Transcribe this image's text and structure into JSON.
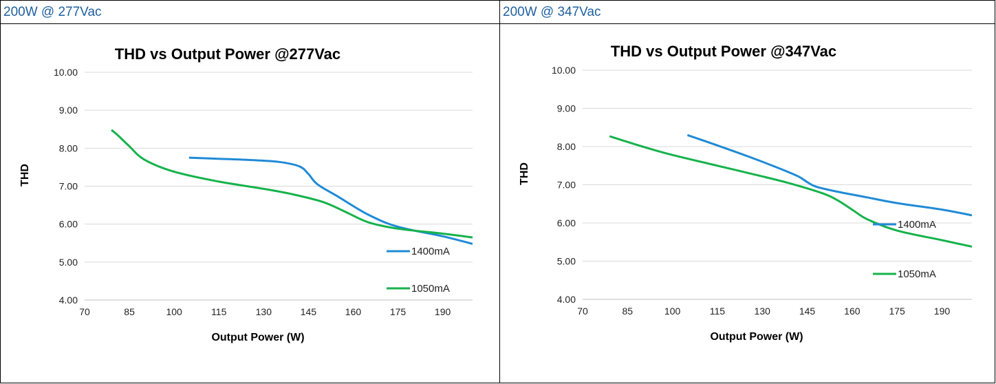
{
  "cells": [
    {
      "header": "200W @ 277Vac"
    },
    {
      "header": "200W @ 347Vac"
    }
  ],
  "colors": {
    "s1400": "#1f8ad6",
    "s1050": "#16b24b",
    "grid": "#d9d9d9",
    "header_text": "#1f5f9e"
  },
  "chart_data": [
    {
      "type": "line",
      "title": "THD vs Output Power @277Vac",
      "xlabel": "Output Power (W)",
      "ylabel": "THD",
      "xlim": [
        70,
        200
      ],
      "ylim": [
        4,
        10
      ],
      "xticks": [
        "70",
        "85",
        "100",
        "115",
        "130",
        "145",
        "160",
        "175",
        "190"
      ],
      "yticks": [
        "4.00",
        "5.00",
        "6.00",
        "7.00",
        "8.00",
        "9.00",
        "10.00"
      ],
      "grid": "horizontal",
      "legend_position": "bottom-right",
      "series": [
        {
          "name": "1400mA",
          "x": [
            105,
            115,
            125,
            135,
            142,
            145,
            148,
            155,
            165,
            175,
            190,
            200
          ],
          "y": [
            7.75,
            7.72,
            7.69,
            7.64,
            7.52,
            7.32,
            7.05,
            6.72,
            6.25,
            5.93,
            5.68,
            5.48
          ]
        },
        {
          "name": "1050mA",
          "x": [
            79,
            81,
            85,
            90,
            100,
            115,
            130,
            140,
            150,
            158,
            165,
            175,
            190,
            200
          ],
          "y": [
            8.48,
            8.35,
            8.05,
            7.7,
            7.38,
            7.12,
            6.93,
            6.78,
            6.58,
            6.3,
            6.05,
            5.88,
            5.75,
            5.65
          ]
        }
      ]
    },
    {
      "type": "line",
      "title": "THD vs Output Power @347Vac",
      "xlabel": "Output Power (W)",
      "ylabel": "THD",
      "xlim": [
        70,
        200
      ],
      "ylim": [
        4,
        10
      ],
      "xticks": [
        "70",
        "85",
        "100",
        "115",
        "130",
        "145",
        "160",
        "175",
        "190"
      ],
      "yticks": [
        "4.00",
        "5.00",
        "6.00",
        "7.00",
        "8.00",
        "9.00",
        "10.00"
      ],
      "grid": "horizontal",
      "legend_position": "right",
      "series": [
        {
          "name": "1400mA",
          "x": [
            105,
            115,
            125,
            135,
            142,
            145,
            148,
            155,
            165,
            175,
            190,
            200
          ],
          "y": [
            8.3,
            8.03,
            7.75,
            7.45,
            7.22,
            7.07,
            6.95,
            6.82,
            6.67,
            6.52,
            6.35,
            6.2
          ]
        },
        {
          "name": "1050mA",
          "x": [
            79,
            90,
            100,
            115,
            130,
            140,
            150,
            155,
            160,
            165,
            175,
            190,
            200
          ],
          "y": [
            8.27,
            8.0,
            7.78,
            7.5,
            7.22,
            7.02,
            6.78,
            6.6,
            6.35,
            6.1,
            5.8,
            5.55,
            5.38
          ]
        }
      ]
    }
  ]
}
